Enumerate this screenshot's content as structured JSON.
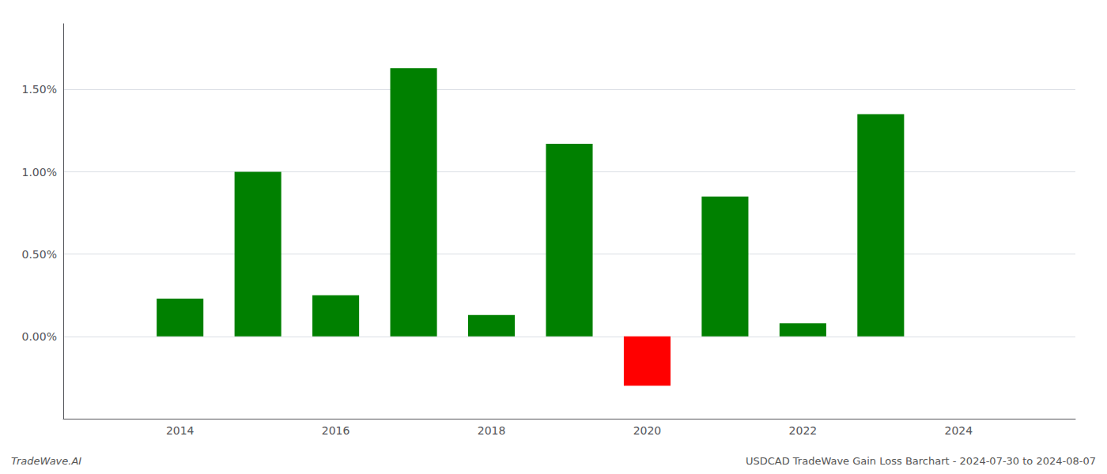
{
  "chart_data": {
    "type": "bar",
    "x": [
      2014,
      2015,
      2016,
      2017,
      2018,
      2019,
      2020,
      2021,
      2022,
      2023
    ],
    "values": [
      0.0023,
      0.01,
      0.0025,
      0.0163,
      0.0013,
      0.0117,
      -0.003,
      0.0085,
      0.0008,
      0.0135
    ],
    "colors": [
      "#008000",
      "#008000",
      "#008000",
      "#008000",
      "#008000",
      "#008000",
      "#ff0000",
      "#008000",
      "#008000",
      "#008000"
    ],
    "xlim": [
      2012.5,
      2025.5
    ],
    "xticks": [
      2014,
      2016,
      2018,
      2020,
      2022,
      2024
    ],
    "ylim": [
      -0.005,
      0.019
    ],
    "yticks": [
      {
        "value": 0.0,
        "label": "0.00%"
      },
      {
        "value": 0.005,
        "label": "0.50%"
      },
      {
        "value": 0.01,
        "label": "1.00%"
      },
      {
        "value": 0.015,
        "label": "1.50%"
      }
    ],
    "grid": true,
    "annotations": [
      "TradeWave.AI",
      "USDCAD TradeWave Gain Loss Barchart - 2024-07-30 to 2024-08-07"
    ]
  }
}
